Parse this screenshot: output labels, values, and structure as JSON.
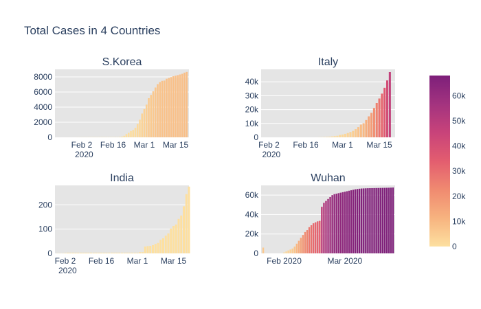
{
  "title": "Total Cases in 4 Countries",
  "colorscale": [
    "#fde0a0",
    "#f7b37f",
    "#f08a70",
    "#e35d6f",
    "#c8437a",
    "#a3337f",
    "#7d1f7a"
  ],
  "colorbar": {
    "min": 0,
    "max": 68000,
    "ticks": [
      "0",
      "10k",
      "20k",
      "30k",
      "40k",
      "50k",
      "60k"
    ],
    "tick_values": [
      0,
      10000,
      20000,
      30000,
      40000,
      50000,
      60000
    ]
  },
  "chart_data": [
    {
      "type": "bar",
      "title": "S.Korea",
      "x_start": "2020-01-22",
      "x_end": "2020-03-20",
      "x_range": [
        "2020-01-21",
        "2020-03-21"
      ],
      "x_ticks": [
        [
          "2020-02-02",
          "Feb 2",
          "2020"
        ],
        [
          "2020-02-16",
          "Feb 16",
          ""
        ],
        [
          "2020-03-01",
          "Mar 1",
          ""
        ],
        [
          "2020-03-15",
          "Mar 15",
          ""
        ]
      ],
      "ylim": [
        0,
        9000
      ],
      "y_ticks": [
        [
          0,
          "0"
        ],
        [
          2000,
          "2000"
        ],
        [
          4000,
          "4000"
        ],
        [
          6000,
          "6000"
        ],
        [
          8000,
          "8000"
        ]
      ],
      "values": [
        1,
        1,
        2,
        2,
        3,
        4,
        4,
        4,
        4,
        11,
        12,
        15,
        15,
        16,
        19,
        23,
        24,
        24,
        25,
        27,
        28,
        28,
        28,
        28,
        28,
        29,
        30,
        31,
        51,
        104,
        204,
        433,
        602,
        833,
        977,
        1261,
        1766,
        2337,
        3150,
        3736,
        4335,
        5186,
        5621,
        6088,
        6593,
        7041,
        7314,
        7478,
        7513,
        7755,
        7869,
        7979,
        8086,
        8162,
        8236,
        8320,
        8413,
        8565,
        8652
      ]
    },
    {
      "type": "bar",
      "title": "Italy",
      "x_start": "2020-01-22",
      "x_end": "2020-03-20",
      "x_range": [
        "2020-01-30",
        "2020-03-21"
      ],
      "x_ticks": [
        [
          "2020-02-02",
          "Feb 2",
          "2020"
        ],
        [
          "2020-02-16",
          "Feb 16",
          ""
        ],
        [
          "2020-03-01",
          "Mar 1",
          ""
        ],
        [
          "2020-03-15",
          "Mar 15",
          ""
        ]
      ],
      "ylim": [
        0,
        49000
      ],
      "y_ticks": [
        [
          0,
          "0"
        ],
        [
          10000,
          "10k"
        ],
        [
          20000,
          "20k"
        ],
        [
          30000,
          "30k"
        ],
        [
          40000,
          "40k"
        ]
      ],
      "values": [
        0,
        0,
        0,
        0,
        0,
        0,
        0,
        0,
        0,
        2,
        2,
        2,
        2,
        2,
        2,
        2,
        3,
        3,
        3,
        3,
        3,
        3,
        3,
        3,
        3,
        3,
        3,
        3,
        3,
        20,
        62,
        155,
        229,
        322,
        453,
        655,
        888,
        1128,
        1694,
        2036,
        2502,
        3089,
        3858,
        4636,
        5883,
        7375,
        9172,
        10149,
        12462,
        15113,
        17660,
        21157,
        24747,
        27980,
        31506,
        35713,
        41035,
        47021
      ]
    },
    {
      "type": "bar",
      "title": "India",
      "x_start": "2020-01-30",
      "x_end": "2020-03-20",
      "x_range": [
        "2020-01-29",
        "2020-03-21"
      ],
      "x_ticks": [
        [
          "2020-02-02",
          "Feb 2",
          "2020"
        ],
        [
          "2020-02-16",
          "Feb 16",
          ""
        ],
        [
          "2020-03-01",
          "Mar 1",
          ""
        ],
        [
          "2020-03-15",
          "Mar 15",
          ""
        ]
      ],
      "ylim": [
        0,
        280
      ],
      "y_ticks": [
        [
          0,
          "0"
        ],
        [
          100,
          "100"
        ],
        [
          200,
          "200"
        ]
      ],
      "values": [
        1,
        1,
        1,
        2,
        3,
        3,
        3,
        3,
        3,
        3,
        3,
        3,
        3,
        3,
        3,
        3,
        3,
        3,
        3,
        3,
        3,
        3,
        3,
        3,
        3,
        3,
        3,
        3,
        3,
        3,
        3,
        3,
        5,
        5,
        28,
        30,
        31,
        34,
        39,
        43,
        56,
        62,
        73,
        82,
        102,
        113,
        119,
        142,
        156,
        194,
        244,
        275
      ]
    },
    {
      "type": "bar",
      "title": "Wuhan",
      "x_start": "2020-01-22",
      "x_end": "2020-03-24",
      "x_range": [
        "2020-01-21",
        "2020-03-25"
      ],
      "x_ticks": [
        [
          "2020-02-01",
          "Feb 2020",
          ""
        ],
        [
          "2020-03-01",
          "Mar 2020",
          ""
        ]
      ],
      "ylim": [
        0,
        70000
      ],
      "y_ticks": [
        [
          0,
          "0"
        ],
        [
          20000,
          "20k"
        ],
        [
          40000,
          "40k"
        ],
        [
          60000,
          "60k"
        ]
      ],
      "values": [
        6000,
        0,
        0,
        0,
        0,
        0,
        0,
        0,
        0,
        0,
        1000,
        2000,
        3000,
        4000,
        5000,
        7000,
        10000,
        13000,
        16000,
        19000,
        22000,
        24000,
        27000,
        29000,
        31000,
        32000,
        33000,
        33500,
        48000,
        52000,
        54000,
        56000,
        58000,
        60000,
        61000,
        61500,
        62000,
        62500,
        63000,
        63500,
        64000,
        64500,
        65000,
        65500,
        66000,
        66300,
        66600,
        66800,
        66900,
        67000,
        67100,
        67150,
        67200,
        67250,
        67300,
        67350,
        67400,
        67450,
        67500,
        67550,
        67600,
        67700,
        67800
      ]
    }
  ]
}
